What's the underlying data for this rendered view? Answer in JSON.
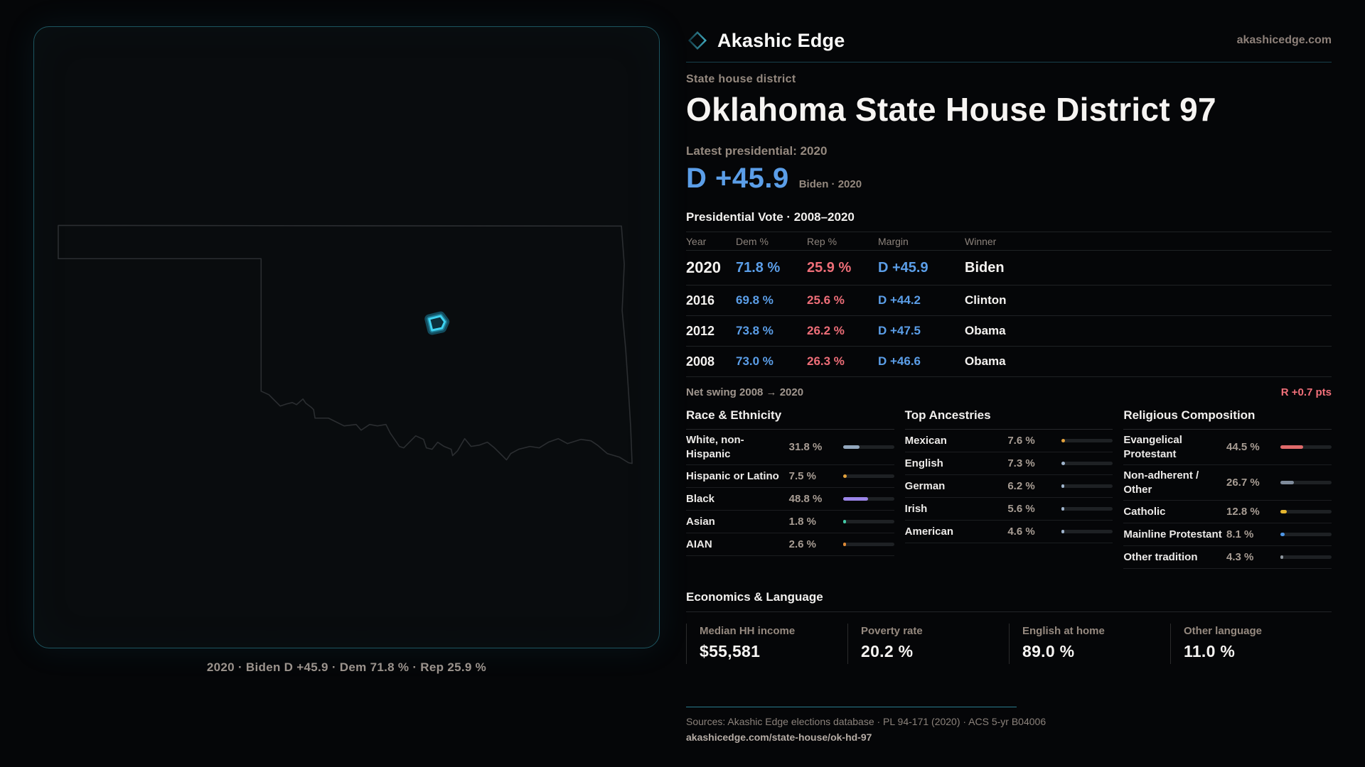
{
  "brand": {
    "name": "Akashic Edge",
    "domain": "akashicedge.com",
    "accent_color": "#2a7c8e"
  },
  "header": {
    "eyebrow": "State house district",
    "title": "Oklahoma State House District 97"
  },
  "headline": {
    "latest_label": "Latest presidential: 2020",
    "margin": "D +45.9",
    "sub": "Biden · 2020",
    "margin_color": "#5b9ee8"
  },
  "map": {
    "caption": "2020 · Biden D +45.9 · Dem 71.8 % · Rep 25.9 %",
    "district_color": "#3fd2f0",
    "outline_color": "#2b2e31"
  },
  "vote_table": {
    "title": "Presidential Vote · 2008–2020",
    "columns": [
      "Year",
      "Dem %",
      "Rep %",
      "Margin",
      "Winner"
    ],
    "rows": [
      {
        "year": "2020",
        "dem": "71.8 %",
        "rep": "25.9 %",
        "margin": "D +45.9",
        "winner": "Biden",
        "emphasis": true
      },
      {
        "year": "2016",
        "dem": "69.8 %",
        "rep": "25.6 %",
        "margin": "D +44.2",
        "winner": "Clinton",
        "emphasis": false
      },
      {
        "year": "2012",
        "dem": "73.8 %",
        "rep": "26.2 %",
        "margin": "D +47.5",
        "winner": "Obama",
        "emphasis": false
      },
      {
        "year": "2008",
        "dem": "73.0 %",
        "rep": "26.3 %",
        "margin": "D +46.6",
        "winner": "Obama",
        "emphasis": false
      }
    ],
    "net_swing_label": "Net swing 2008 → 2020",
    "net_swing_value": "R +0.7 pts",
    "dem_color": "#5b9ee8",
    "rep_color": "#ee6e78"
  },
  "demographics": [
    {
      "title": "Race & Ethnicity",
      "rows": [
        {
          "label": "White, non-Hispanic",
          "value": "31.8 %",
          "pct": 31.8,
          "color": "#93a7bd"
        },
        {
          "label": "Hispanic or Latino",
          "value": "7.5 %",
          "pct": 7.5,
          "color": "#e3a23c"
        },
        {
          "label": "Black",
          "value": "48.8 %",
          "pct": 48.8,
          "color": "#9b85e8"
        },
        {
          "label": "Asian",
          "value": "1.8 %",
          "pct": 1.8,
          "color": "#43c9a6"
        },
        {
          "label": "AIAN",
          "value": "2.6 %",
          "pct": 2.6,
          "color": "#de8a37"
        }
      ]
    },
    {
      "title": "Top Ancestries",
      "rows": [
        {
          "label": "Mexican",
          "value": "7.6 %",
          "pct": 7.6,
          "color": "#e3a23c"
        },
        {
          "label": "English",
          "value": "7.3 %",
          "pct": 7.3,
          "color": "#9fb4cc"
        },
        {
          "label": "German",
          "value": "6.2 %",
          "pct": 6.2,
          "color": "#9fb4cc"
        },
        {
          "label": "Irish",
          "value": "5.6 %",
          "pct": 5.6,
          "color": "#9fb4cc"
        },
        {
          "label": "American",
          "value": "4.6 %",
          "pct": 4.6,
          "color": "#9fb4cc"
        }
      ]
    },
    {
      "title": "Religious Composition",
      "rows": [
        {
          "label": "Evangelical Protestant",
          "value": "44.5 %",
          "pct": 44.5,
          "color": "#e06a6a"
        },
        {
          "label": "Non-adherent / Other",
          "value": "26.7 %",
          "pct": 26.7,
          "color": "#7f8b9b"
        },
        {
          "label": "Catholic",
          "value": "12.8 %",
          "pct": 12.8,
          "color": "#e5b62f"
        },
        {
          "label": "Mainline Protestant",
          "value": "8.1 %",
          "pct": 8.1,
          "color": "#4e96e6"
        },
        {
          "label": "Other tradition",
          "value": "4.3 %",
          "pct": 4.3,
          "color": "#8e969e"
        }
      ]
    }
  ],
  "economics": {
    "title": "Economics & Language",
    "stats": [
      {
        "label": "Median HH income",
        "value": "$55,581"
      },
      {
        "label": "Poverty rate",
        "value": "20.2 %"
      },
      {
        "label": "English at home",
        "value": "89.0 %"
      },
      {
        "label": "Other language",
        "value": "11.0 %"
      }
    ]
  },
  "footer": {
    "sources": "Sources: Akashic Edge elections database · PL 94-171 (2020) · ACS 5-yr B04006",
    "permalink": "akashicedge.com/state-house/ok-hd-97"
  }
}
